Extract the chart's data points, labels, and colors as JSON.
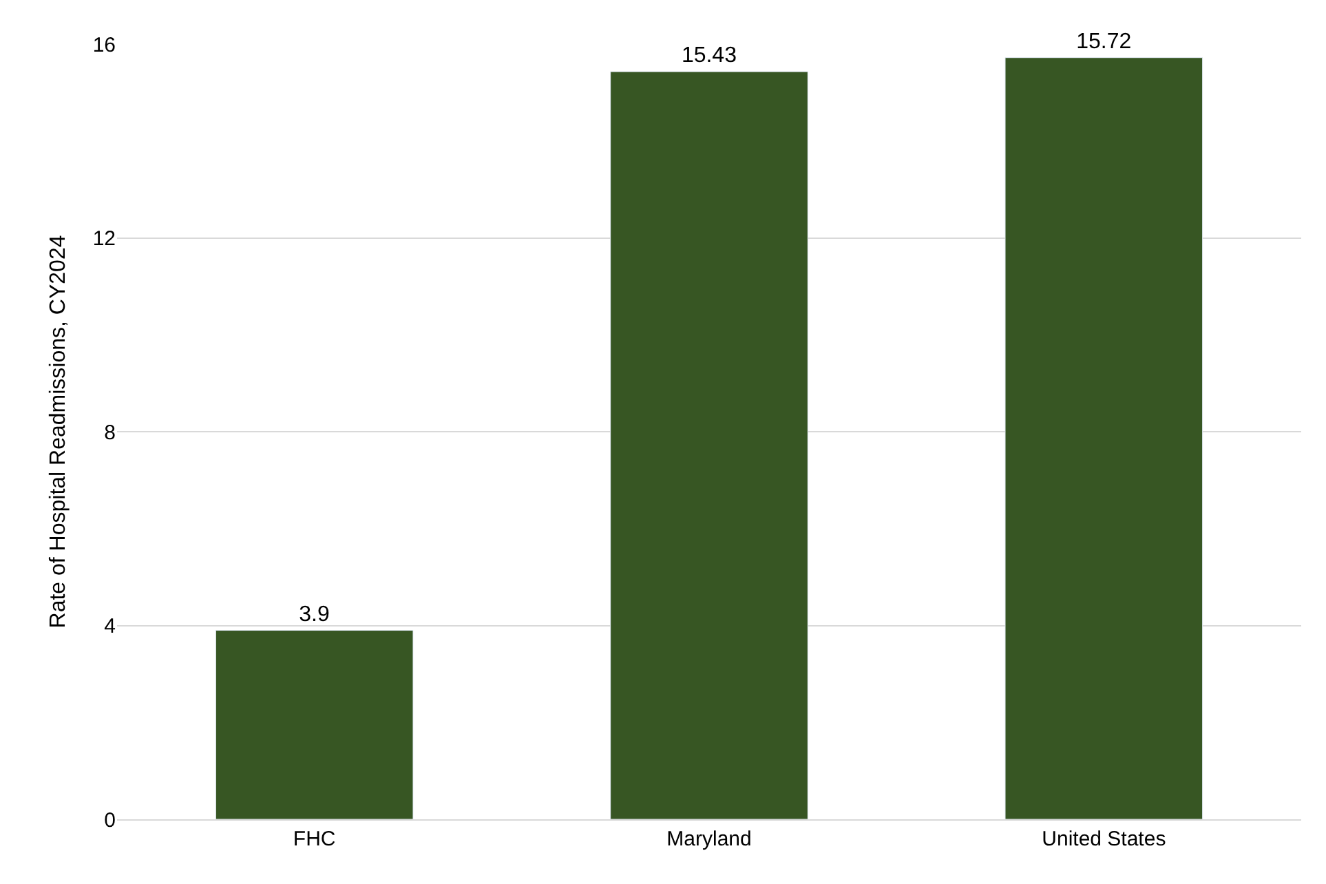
{
  "chart_data": {
    "type": "bar",
    "ylabel": "Rate of Hospital Readmissions, CY2024",
    "categories": [
      "FHC",
      "Maryland",
      "United States"
    ],
    "values": [
      3.9,
      15.43,
      15.72
    ],
    "color": "#375623",
    "ylim": [
      0,
      16
    ],
    "yticks": [
      0,
      4,
      8,
      12,
      16
    ],
    "grid": "y",
    "data_labels": true,
    "legend": false
  }
}
